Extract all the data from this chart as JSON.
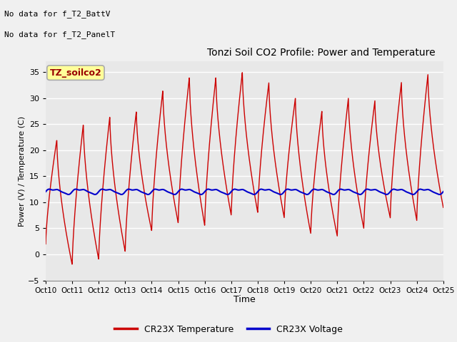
{
  "title": "Tonzi Soil CO2 Profile: Power and Temperature",
  "ylabel": "Power (V) / Temperature (C)",
  "xlabel": "Time",
  "ylim": [
    -5,
    37
  ],
  "yticks": [
    -5,
    0,
    5,
    10,
    15,
    20,
    25,
    30,
    35
  ],
  "fig_bg_color": "#f0f0f0",
  "plot_bg_color": "#e8e8e8",
  "grid_color": "#ffffff",
  "note_lines": [
    "No data for f_T2_BattV",
    "No data for f_T2_PanelT"
  ],
  "legend_label_box": "TZ_soilco2",
  "legend_label_box_color": "#ffff99",
  "legend_label_box_border": "#aaaaaa",
  "xtick_labels": [
    "Oct 10",
    "Oct 11",
    "Oct 12",
    "Oct 13",
    "Oct 14",
    "Oct 15",
    "Oct 16",
    "Oct 17",
    "Oct 18",
    "Oct 19",
    "Oct 20",
    "Oct 21",
    "Oct 22",
    "Oct 23",
    "Oct 24",
    "Oct 25"
  ],
  "temp_color": "#cc0000",
  "volt_color": "#0000cc",
  "temp_legend": "CR23X Temperature",
  "volt_legend": "CR23X Voltage",
  "temp_linewidth": 1.0,
  "volt_linewidth": 1.5,
  "peaks_max": [
    22,
    25,
    26.5,
    27.5,
    31.5,
    34,
    34,
    35,
    33,
    30,
    27.5,
    30,
    29.5,
    33,
    34.5,
    9
  ],
  "peaks_min": [
    2,
    -2,
    -1,
    0.5,
    4.5,
    6,
    5.5,
    7.5,
    8,
    7,
    4,
    3.5,
    5,
    7,
    6.5,
    9
  ],
  "volt_base": 12.1,
  "volt_amp": 0.9
}
